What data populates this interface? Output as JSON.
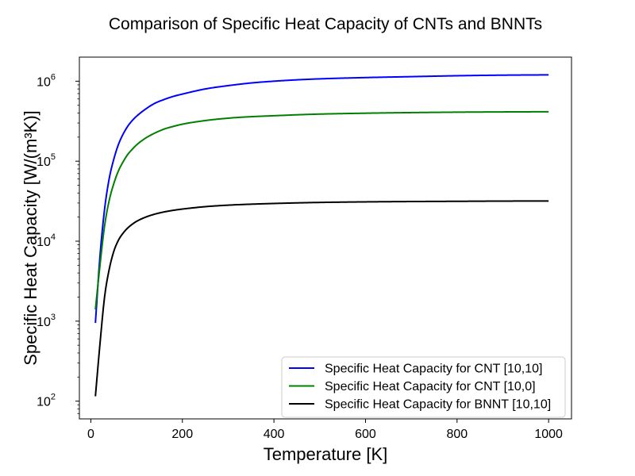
{
  "chart_data": {
    "type": "line",
    "title": "Comparison of Specific Heat Capacity of CNTs and BNNTs",
    "xlabel": "Temperature [K]",
    "ylabel": "Specific Heat Capacity [W/(m³K)]",
    "xlim": [
      -25,
      1050
    ],
    "ylim": [
      60,
      2000000
    ],
    "yscale": "log",
    "xticks": [
      0,
      200,
      400,
      600,
      800,
      1000
    ],
    "yticks": [
      {
        "value": 100,
        "base": "10",
        "exp": "2"
      },
      {
        "value": 1000,
        "base": "10",
        "exp": "3"
      },
      {
        "value": 10000,
        "base": "10",
        "exp": "4"
      },
      {
        "value": 100000,
        "base": "10",
        "exp": "5"
      },
      {
        "value": 1000000,
        "base": "10",
        "exp": "6"
      }
    ],
    "grid": false,
    "legend_position": "lower-right",
    "x": [
      10,
      20,
      30,
      40,
      50,
      60,
      70,
      80,
      90,
      100,
      120,
      140,
      160,
      180,
      200,
      250,
      300,
      350,
      400,
      450,
      500,
      600,
      700,
      800,
      900,
      1000
    ],
    "series": [
      {
        "name": "Specific Heat Capacity for CNT [10,10]",
        "color": "#0000ff",
        "values": [
          950,
          6500,
          25000,
          60000,
          105000,
          160000,
          215000,
          270000,
          320000,
          365000,
          450000,
          530000,
          590000,
          645000,
          690000,
          800000,
          880000,
          950000,
          1000000,
          1040000,
          1070000,
          1110000,
          1140000,
          1170000,
          1190000,
          1200000
        ]
      },
      {
        "name": "Specific Heat Capacity for CNT [10,0]",
        "color": "#008000",
        "values": [
          1400,
          5000,
          15500,
          32000,
          52000,
          75000,
          97000,
          120000,
          140000,
          160000,
          195000,
          225000,
          252000,
          272000,
          290000,
          322000,
          345000,
          360000,
          370000,
          380000,
          388000,
          398000,
          405000,
          410000,
          413000,
          415000
        ]
      },
      {
        "name": "Specific Heat Capacity for BNNT [10,10]",
        "color": "#000000",
        "values": [
          115,
          520,
          2000,
          4400,
          7400,
          10200,
          12500,
          14500,
          16200,
          17700,
          20000,
          21800,
          23200,
          24300,
          25200,
          27000,
          28200,
          29000,
          29600,
          30100,
          30500,
          31000,
          31300,
          31500,
          31700,
          31800
        ]
      }
    ]
  }
}
